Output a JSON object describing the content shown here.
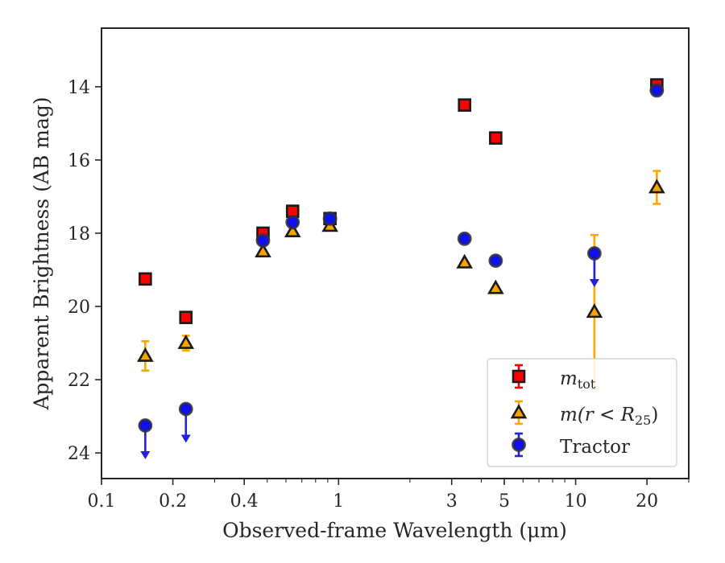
{
  "chart_data": {
    "type": "scatter",
    "xlabel": "Observed-frame Wavelength (μm)",
    "ylabel": "Apparent Brightness (AB mag)",
    "xscale": "log",
    "xlim": [
      0.1,
      30
    ],
    "ylim": [
      24.7,
      12.4
    ],
    "y_inverted": true,
    "x_ticks": [
      {
        "value": 0.1,
        "label": "0.1"
      },
      {
        "value": 0.2,
        "label": "0.2"
      },
      {
        "value": 0.4,
        "label": "0.4"
      },
      {
        "value": 1,
        "label": "1"
      },
      {
        "value": 3,
        "label": "3"
      },
      {
        "value": 5,
        "label": "5"
      },
      {
        "value": 10,
        "label": "10"
      },
      {
        "value": 20,
        "label": "20"
      }
    ],
    "y_ticks": [
      {
        "value": 14,
        "label": "14"
      },
      {
        "value": 16,
        "label": "16"
      },
      {
        "value": 18,
        "label": "18"
      },
      {
        "value": 20,
        "label": "20"
      },
      {
        "value": 22,
        "label": "22"
      },
      {
        "value": 24,
        "label": "24"
      }
    ],
    "grid": false,
    "legend_position": "lower-right",
    "series": [
      {
        "name": "m_tot",
        "marker": "square",
        "color": "#ff0000",
        "edge_color": "#1a1a1a",
        "errorbar_color": "#ff0000",
        "points": [
          {
            "x": 0.153,
            "y": 19.25
          },
          {
            "x": 0.227,
            "y": 20.3
          },
          {
            "x": 0.48,
            "y": 18.0
          },
          {
            "x": 0.64,
            "y": 17.4
          },
          {
            "x": 0.92,
            "y": 17.6
          },
          {
            "x": 3.4,
            "y": 14.5
          },
          {
            "x": 4.6,
            "y": 15.4
          },
          {
            "x": 22.0,
            "y": 13.95
          }
        ]
      },
      {
        "name": "m(r<R25)",
        "marker": "triangle",
        "color": "#f5a300",
        "edge_color": "#1a1a1a",
        "errorbar_color": "#ffa500",
        "points": [
          {
            "x": 0.153,
            "y": 21.35,
            "err": 0.4
          },
          {
            "x": 0.227,
            "y": 21.0,
            "err": 0.2
          },
          {
            "x": 0.48,
            "y": 18.5
          },
          {
            "x": 0.64,
            "y": 17.95
          },
          {
            "x": 0.92,
            "y": 17.8
          },
          {
            "x": 3.4,
            "y": 18.8
          },
          {
            "x": 4.6,
            "y": 19.5
          },
          {
            "x": 12.0,
            "y": 20.15,
            "err_upper": 2.1,
            "err_lower": 2.1
          },
          {
            "x": 22.0,
            "y": 16.75,
            "err": 0.45
          }
        ]
      },
      {
        "name": "Tractor",
        "marker": "circle",
        "color": "#1010ee",
        "edge_color": "#333333",
        "errorbar_color": "#2222dd",
        "points": [
          {
            "x": 0.153,
            "y": 23.25,
            "upper_limit": true
          },
          {
            "x": 0.227,
            "y": 22.8,
            "upper_limit": true
          },
          {
            "x": 0.48,
            "y": 18.2
          },
          {
            "x": 0.64,
            "y": 17.7
          },
          {
            "x": 0.92,
            "y": 17.6
          },
          {
            "x": 3.4,
            "y": 18.15
          },
          {
            "x": 4.6,
            "y": 18.75
          },
          {
            "x": 12.0,
            "y": 18.55,
            "upper_limit": true
          },
          {
            "x": 22.0,
            "y": 14.1
          }
        ]
      }
    ]
  },
  "legend": {
    "items": [
      {
        "sym": "m",
        "sub": "tot",
        "rest": ""
      },
      {
        "sym": "m",
        "sub": "",
        "rest": "(r < R",
        "sub2": "25",
        "tail": ")"
      },
      {
        "plain": "Tractor"
      }
    ]
  }
}
